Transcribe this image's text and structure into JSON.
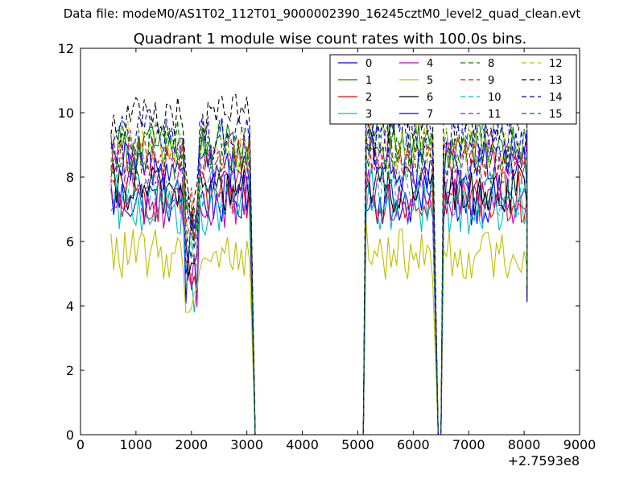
{
  "suptitle": "Data file: modeM0/AS1T02_112T01_9000002390_16245cztM0_level2_quad_clean.evt",
  "chart_data": {
    "type": "line",
    "title": "Quadrant 1 module wise count rates with 100.0s bins.",
    "xlabel": "",
    "ylabel": "",
    "x_offset_label": "+2.7593e8",
    "xlim": [
      0,
      9000
    ],
    "ylim": [
      0,
      12
    ],
    "xticks": [
      0,
      1000,
      2000,
      3000,
      4000,
      5000,
      6000,
      7000,
      8000,
      9000
    ],
    "yticks": [
      0,
      2,
      4,
      6,
      8,
      10,
      12
    ],
    "legend_position": "top-right",
    "grid": false,
    "segments": [
      [
        550,
        3050
      ],
      [
        5150,
        6350
      ],
      [
        6550,
        8050
      ]
    ],
    "base_levels": [
      7.3,
      8.9,
      7.4,
      7.0,
      7.2,
      5.6,
      7.6,
      8.3,
      9.0,
      8.7,
      7.6,
      8.4,
      9.0,
      9.8,
      9.3,
      8.6
    ],
    "series": [
      {
        "name": "0",
        "color": "#0000ff",
        "dash": "solid"
      },
      {
        "name": "1",
        "color": "#008000",
        "dash": "solid"
      },
      {
        "name": "2",
        "color": "#ff0000",
        "dash": "solid"
      },
      {
        "name": "3",
        "color": "#00bfbf",
        "dash": "solid"
      },
      {
        "name": "4",
        "color": "#bf00bf",
        "dash": "solid"
      },
      {
        "name": "5",
        "color": "#bfbf00",
        "dash": "solid"
      },
      {
        "name": "6",
        "color": "#000000",
        "dash": "solid"
      },
      {
        "name": "7",
        "color": "#0000ff",
        "dash": "solid"
      },
      {
        "name": "8",
        "color": "#008000",
        "dash": "dashed"
      },
      {
        "name": "9",
        "color": "#ff0000",
        "dash": "dashed"
      },
      {
        "name": "10",
        "color": "#00bfbf",
        "dash": "dashed"
      },
      {
        "name": "11",
        "color": "#bf00bf",
        "dash": "dashed"
      },
      {
        "name": "12",
        "color": "#bfbf00",
        "dash": "dashed"
      },
      {
        "name": "13",
        "color": "#000000",
        "dash": "dashed"
      },
      {
        "name": "14",
        "color": "#0000ff",
        "dash": "dashed"
      },
      {
        "name": "15",
        "color": "#008000",
        "dash": "dashed"
      }
    ]
  }
}
